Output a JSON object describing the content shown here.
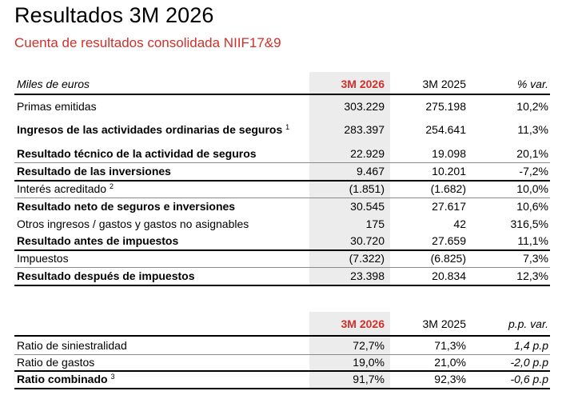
{
  "title": "Resultados 3M 2026",
  "subtitle": "Cuenta de resultados consolidada NIIF17&9",
  "table1": {
    "header": {
      "label": "Miles de euros",
      "col1": "3M 2026",
      "col2": "3M 2025",
      "col3": "% var."
    },
    "rows": [
      {
        "label": "Primas emitidas",
        "sup": "",
        "v1": "303.229",
        "v2": "275.198",
        "v3": "10,2%"
      },
      {
        "label": "Ingresos de las actividades ordinarias de seguros",
        "sup": "1",
        "v1": "283.397",
        "v2": "254.641",
        "v3": "11,3%"
      },
      {
        "label": "Resultado técnico de la actividad de seguros",
        "sup": "",
        "v1": "22.929",
        "v2": "19.098",
        "v3": "20,1%"
      },
      {
        "label": "Resultado de las inversiones",
        "sup": "",
        "v1": "9.467",
        "v2": "10.201",
        "v3": "-7,2%"
      },
      {
        "label": "Interés acreditado",
        "sup": "2",
        "v1": "(1.851)",
        "v2": "(1.682)",
        "v3": "10,0%"
      },
      {
        "label": "Resultado neto de seguros e inversiones",
        "sup": "",
        "v1": "30.545",
        "v2": "27.617",
        "v3": "10,6%"
      },
      {
        "label": "Otros ingresos / gastos y gastos no asignables",
        "sup": "",
        "v1": "175",
        "v2": "42",
        "v3": "316,5%"
      },
      {
        "label": "Resultado antes de impuestos",
        "sup": "",
        "v1": "30.720",
        "v2": "27.659",
        "v3": "11,1%"
      },
      {
        "label": "Impuestos",
        "sup": "",
        "v1": "(7.322)",
        "v2": "(6.825)",
        "v3": "7,3%"
      },
      {
        "label": "Resultado después de impuestos",
        "sup": "",
        "v1": "23.398",
        "v2": "20.834",
        "v3": "12,3%"
      }
    ]
  },
  "table2": {
    "header": {
      "col1": "3M 2026",
      "col2": "3M 2025",
      "col3": "p.p. var."
    },
    "rows": [
      {
        "label": "Ratio de siniestralidad",
        "sup": "",
        "v1": "72,7%",
        "v2": "71,3%",
        "v3": "1,4 p.p"
      },
      {
        "label": "Ratio de gastos",
        "sup": "",
        "v1": "19,0%",
        "v2": "21,0%",
        "v3": "-2,0 p.p"
      },
      {
        "label": "Ratio combinado",
        "sup": "3",
        "v1": "91,7%",
        "v2": "92,3%",
        "v3": "-0,6 p.p"
      }
    ]
  },
  "colors": {
    "accent": "#d0302b",
    "shade": "#ececec"
  }
}
